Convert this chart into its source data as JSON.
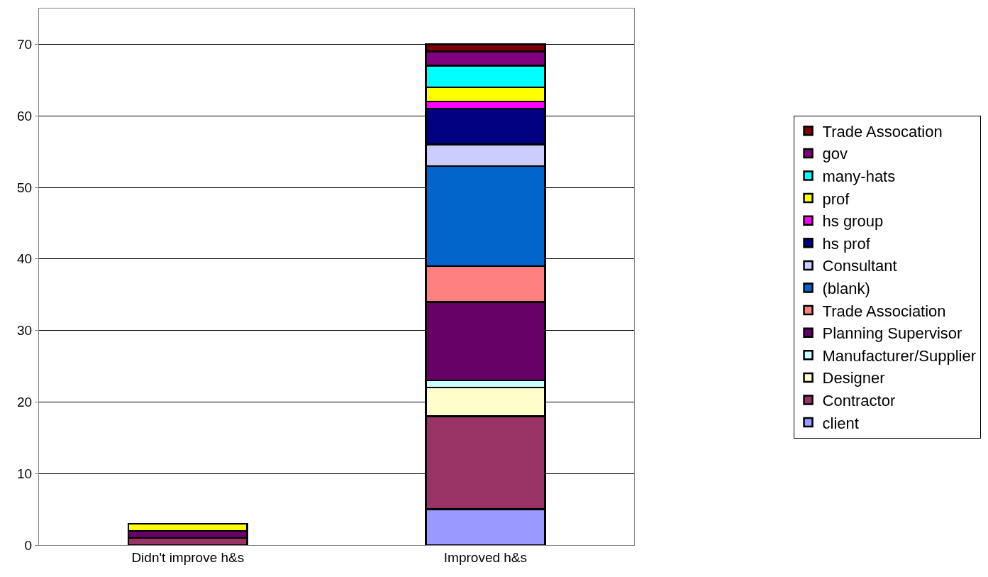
{
  "chart_data": {
    "type": "bar",
    "stacked": true,
    "categories": [
      "Didn't improve h&s",
      "Improved h&s"
    ],
    "series": [
      {
        "name": "client",
        "color": "#9999ff",
        "values": [
          null,
          5
        ]
      },
      {
        "name": "Contractor",
        "color": "#993366",
        "values": [
          1,
          13
        ]
      },
      {
        "name": "Designer",
        "color": "#ffffcc",
        "values": [
          null,
          4
        ]
      },
      {
        "name": "Manufacturer/Supplier",
        "color": "#ccffff",
        "values": [
          null,
          1
        ]
      },
      {
        "name": "Planning Supervisor",
        "color": "#660066",
        "values": [
          1,
          11
        ]
      },
      {
        "name": "Trade Association",
        "color": "#ff8080",
        "values": [
          null,
          5
        ]
      },
      {
        "name": "(blank)",
        "color": "#0066cc",
        "values": [
          null,
          14
        ]
      },
      {
        "name": "Consultant",
        "color": "#ccccff",
        "values": [
          null,
          3
        ]
      },
      {
        "name": "hs prof",
        "color": "#000080",
        "values": [
          null,
          5
        ]
      },
      {
        "name": "hs group",
        "color": "#ff00ff",
        "values": [
          null,
          1
        ]
      },
      {
        "name": "prof",
        "color": "#ffff00",
        "values": [
          1,
          2
        ]
      },
      {
        "name": "many-hats",
        "color": "#00ffff",
        "values": [
          null,
          3
        ]
      },
      {
        "name": "gov",
        "color": "#800080",
        "values": [
          null,
          2
        ]
      },
      {
        "name": "Trade Assocation",
        "color": "#800000",
        "values": [
          null,
          1
        ]
      }
    ],
    "ylim": [
      0,
      75
    ],
    "yticks": [
      0,
      10,
      20,
      30,
      40,
      50,
      60,
      70
    ],
    "grid": "y",
    "legend": "right"
  }
}
